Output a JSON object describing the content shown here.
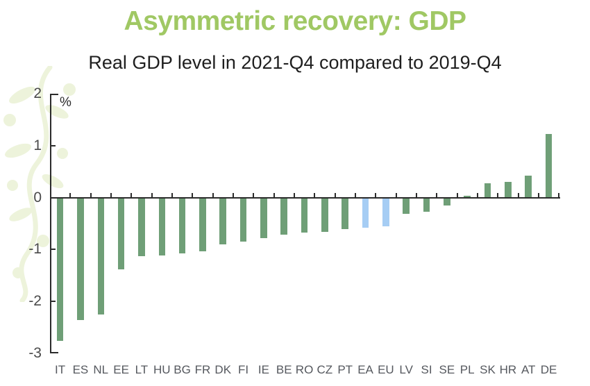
{
  "chart_data": {
    "type": "bar",
    "title": "Asymmetric recovery: GDP",
    "subtitle": "Real GDP level in 2021-Q4 compared to 2019-Q4",
    "unit_label": "%",
    "categories": [
      "IT",
      "ES",
      "NL",
      "EE",
      "LT",
      "HU",
      "BG",
      "FR",
      "DK",
      "FI",
      "IE",
      "BE",
      "RO",
      "CZ",
      "PT",
      "EA",
      "EU",
      "LV",
      "SI",
      "SE",
      "PL",
      "SK",
      "HR",
      "AT",
      "DE"
    ],
    "values": [
      -2.76,
      -2.36,
      -2.26,
      -1.38,
      -1.13,
      -1.12,
      -1.08,
      -1.04,
      -0.9,
      -0.85,
      -0.78,
      -0.71,
      -0.68,
      -0.66,
      -0.61,
      -0.58,
      -0.55,
      -0.32,
      -0.27,
      -0.15,
      0.04,
      0.28,
      0.3,
      0.42,
      1.22
    ],
    "highlighted_categories": [
      "EA",
      "EU"
    ],
    "xlabel": "",
    "ylabel": "%",
    "ylim": [
      -3,
      2
    ],
    "yticks": [
      2,
      1,
      0,
      -1,
      -2,
      -3
    ],
    "grid": false,
    "legend": false,
    "colors": {
      "bar_default": "#6F9F77",
      "bar_highlight": "#A6CDF4",
      "title": "#A0C864",
      "subtitle_text": "#1F1F1F",
      "axis": "#2B2B2B",
      "y_tick_label": "#4A4A4A",
      "x_tick_label": "#55585E",
      "watermark": "#EDF3DB"
    }
  }
}
